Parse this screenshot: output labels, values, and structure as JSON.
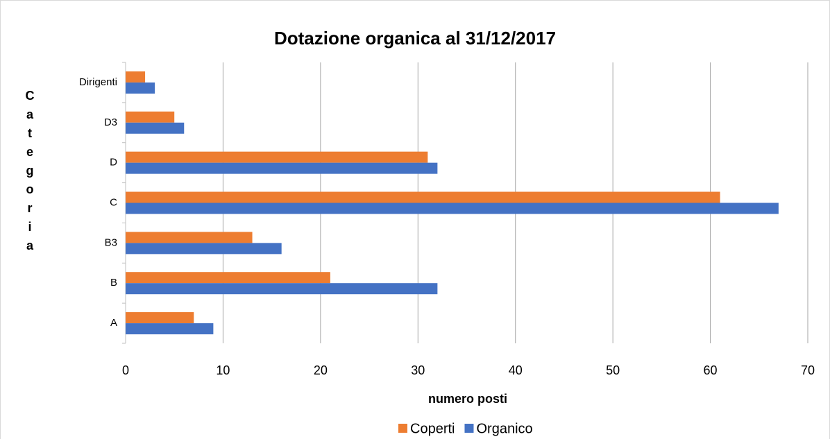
{
  "chart_data": {
    "type": "bar",
    "orientation": "horizontal",
    "title": "Dotazione organica al 31/12/2017",
    "x_label": "numero posti",
    "y_label": "Categoria",
    "categories": [
      "A",
      "B",
      "B3",
      "C",
      "D",
      "D3",
      "Dirigenti"
    ],
    "series": [
      {
        "name": "Coperti",
        "color": "#ed7d31",
        "values": [
          7,
          21,
          13,
          61,
          31,
          5,
          2
        ]
      },
      {
        "name": "Organico",
        "color": "#4472c4",
        "values": [
          9,
          32,
          16,
          67,
          32,
          6,
          3
        ]
      }
    ],
    "xlim": [
      0,
      70
    ],
    "xticks": [
      0,
      10,
      20,
      30,
      40,
      50,
      60,
      70
    ],
    "grid": true,
    "legend": "bottom"
  }
}
